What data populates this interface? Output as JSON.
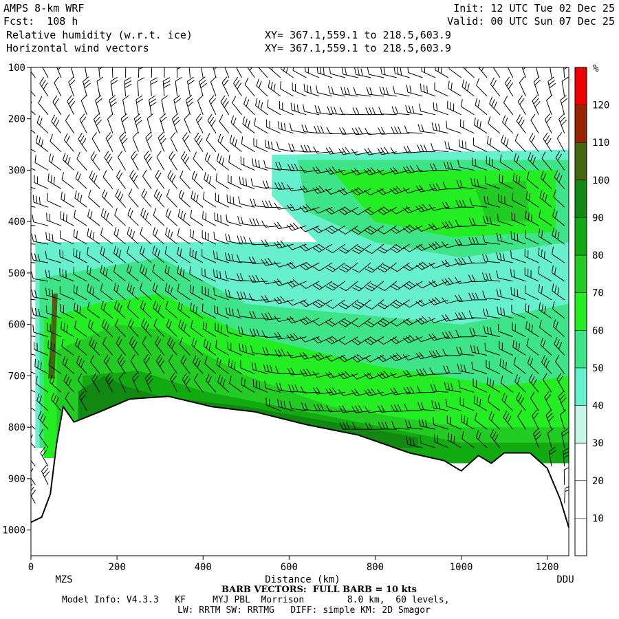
{
  "header": {
    "model_name": "AMPS 8-km WRF",
    "forecast_hour": "Fcst:  108 h",
    "field_1": "Relative humidity (w.r.t. ice)",
    "field_2": "Horizontal wind vectors",
    "init_time": "Init: 12 UTC Tue 02 Dec 25",
    "valid_time": "Valid: 00 UTC Sun 07 Dec 25",
    "xy_1": "XY= 367.1,559.1 to 218.5,603.9",
    "xy_2": "XY= 367.1,559.1 to 218.5,603.9"
  },
  "footer": {
    "barb_note": "BARB VECTORS:  FULL BARB = 10 kts",
    "model_info_1": "Model Info: V4.3.3   KF     MYJ PBL  Morrison        8.0 km,  60 levels,",
    "model_info_2": "LW: RRTM SW: RRTMG   DIFF: simple KM: 2D Smagor"
  },
  "chart_data": {
    "type": "heatmap",
    "xlabel": "Distance (km)",
    "ylabel": "",
    "x_ticks": [
      "0",
      "200",
      "400",
      "600",
      "800",
      "1000",
      "1200"
    ],
    "y_ticks": [
      "100",
      "200",
      "300",
      "400",
      "500",
      "600",
      "700",
      "800",
      "900",
      "1000"
    ],
    "xlim": [
      0,
      1250
    ],
    "ylim": [
      1050,
      100
    ],
    "left_endpoint": "MZS",
    "right_endpoint": "DDU",
    "colorbar": {
      "unit": "%",
      "levels": [
        10,
        20,
        30,
        40,
        50,
        60,
        70,
        80,
        90,
        100,
        110,
        120
      ],
      "labels": [
        "10",
        "20",
        "30",
        "40",
        "50",
        "60",
        "70",
        "80",
        "90",
        "100",
        "110",
        "120"
      ],
      "colors": [
        "#ffffff",
        "#ffffff",
        "#ffffff",
        "#c4f6e5",
        "#66f0cc",
        "#3ee488",
        "#22ee22",
        "#22cc22",
        "#11aa11",
        "#118811",
        "#446611",
        "#992200",
        "#ee0000"
      ]
    },
    "terrain_km_hpa": [
      [
        0,
        985
      ],
      [
        25,
        975
      ],
      [
        45,
        930
      ],
      [
        60,
        830
      ],
      [
        75,
        760
      ],
      [
        100,
        790
      ],
      [
        160,
        770
      ],
      [
        230,
        745
      ],
      [
        320,
        740
      ],
      [
        420,
        760
      ],
      [
        520,
        770
      ],
      [
        640,
        795
      ],
      [
        760,
        815
      ],
      [
        880,
        850
      ],
      [
        960,
        865
      ],
      [
        1000,
        885
      ],
      [
        1040,
        855
      ],
      [
        1070,
        870
      ],
      [
        1100,
        850
      ],
      [
        1160,
        850
      ],
      [
        1200,
        880
      ],
      [
        1230,
        940
      ],
      [
        1250,
        995
      ]
    ],
    "rh_regions": [
      {
        "value": 45,
        "points": [
          [
            10,
            440
          ],
          [
            1250,
            440
          ],
          [
            1250,
            840
          ],
          [
            10,
            840
          ]
        ]
      },
      {
        "value": 45,
        "points": [
          [
            560,
            270
          ],
          [
            1250,
            260
          ],
          [
            1250,
            470
          ],
          [
            900,
            500
          ],
          [
            700,
            470
          ],
          [
            560,
            350
          ]
        ]
      },
      {
        "value": 55,
        "points": [
          [
            20,
            510
          ],
          [
            300,
            470
          ],
          [
            500,
            560
          ],
          [
            750,
            580
          ],
          [
            1000,
            600
          ],
          [
            1250,
            560
          ],
          [
            1250,
            840
          ],
          [
            20,
            840
          ]
        ]
      },
      {
        "value": 55,
        "points": [
          [
            620,
            280
          ],
          [
            1250,
            280
          ],
          [
            1250,
            440
          ],
          [
            1000,
            470
          ],
          [
            800,
            440
          ],
          [
            640,
            380
          ]
        ]
      },
      {
        "value": 65,
        "points": [
          [
            30,
            590
          ],
          [
            150,
            560
          ],
          [
            300,
            540
          ],
          [
            500,
            620
          ],
          [
            800,
            680
          ],
          [
            1100,
            720
          ],
          [
            1250,
            700
          ],
          [
            1250,
            860
          ],
          [
            30,
            860
          ]
        ]
      },
      {
        "value": 65,
        "points": [
          [
            700,
            300
          ],
          [
            1220,
            300
          ],
          [
            1220,
            420
          ],
          [
            980,
            430
          ],
          [
            800,
            400
          ]
        ]
      },
      {
        "value": 75,
        "points": [
          [
            60,
            650
          ],
          [
            200,
            600
          ],
          [
            300,
            610
          ],
          [
            500,
            700
          ],
          [
            700,
            760
          ],
          [
            1000,
            800
          ],
          [
            1250,
            800
          ],
          [
            1250,
            860
          ],
          [
            60,
            860
          ]
        ]
      },
      {
        "value": 75,
        "points": [
          [
            1030,
            330
          ],
          [
            1150,
            320
          ],
          [
            1160,
            400
          ],
          [
            1060,
            400
          ]
        ]
      },
      {
        "value": 85,
        "points": [
          [
            120,
            700
          ],
          [
            250,
            690
          ],
          [
            400,
            730
          ],
          [
            700,
            780
          ],
          [
            1000,
            830
          ],
          [
            1250,
            830
          ],
          [
            1250,
            870
          ],
          [
            120,
            870
          ]
        ]
      },
      {
        "value": 95,
        "points": [
          [
            110,
            730
          ],
          [
            170,
            700
          ],
          [
            220,
            720
          ],
          [
            300,
            740
          ],
          [
            500,
            760
          ],
          [
            700,
            790
          ],
          [
            900,
            820
          ],
          [
            900,
            840
          ],
          [
            110,
            840
          ]
        ]
      },
      {
        "value": 125,
        "points": [
          [
            42,
            700
          ],
          [
            50,
            545
          ],
          [
            58,
            545
          ],
          [
            52,
            700
          ]
        ]
      },
      {
        "value": 105,
        "points": [
          [
            40,
            705
          ],
          [
            52,
            540
          ],
          [
            62,
            540
          ],
          [
            55,
            705
          ]
        ]
      }
    ],
    "wind_barb_grid": {
      "x_start": 10,
      "x_step": 30,
      "p_start": 120,
      "p_step": 36
    }
  }
}
